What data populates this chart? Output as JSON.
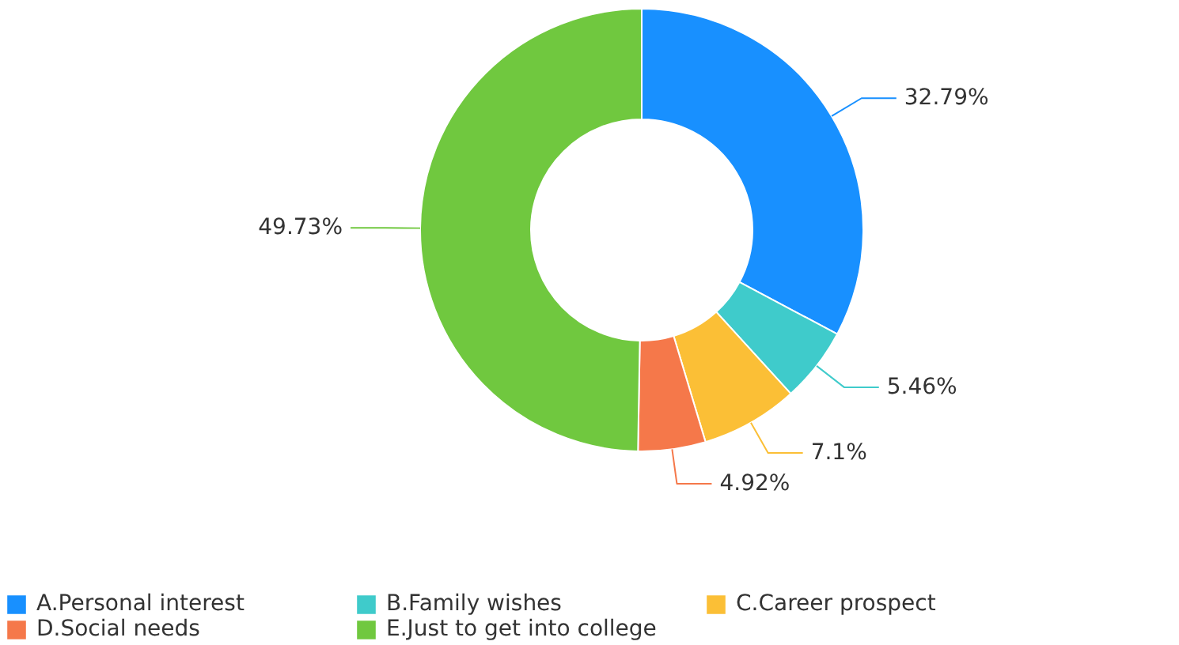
{
  "chart_data": {
    "type": "donut",
    "categories": [
      "A.Personal interest",
      "B.Family wishes",
      "C.Career prospect",
      "D.Social needs",
      "E.Just to get into college"
    ],
    "values": [
      32.79,
      5.46,
      7.1,
      4.92,
      49.73
    ],
    "value_labels": [
      "32.79%",
      "5.46%",
      "7.1%",
      "4.92%",
      "49.73%"
    ],
    "colors": [
      "#1890ff",
      "#3fcbcb",
      "#fbbf36",
      "#f5784a",
      "#70c83f"
    ],
    "legend": "bottom"
  }
}
